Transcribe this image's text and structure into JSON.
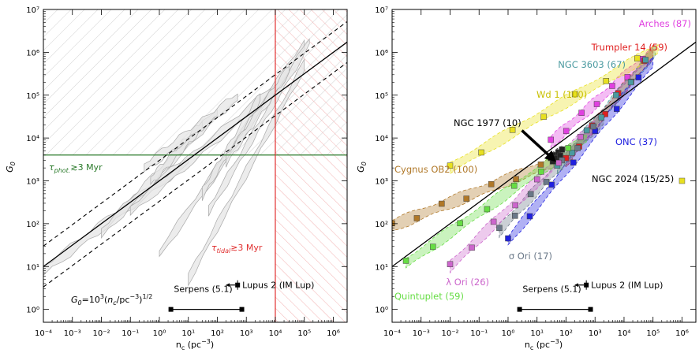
{
  "chart_data": [
    {
      "type": "line",
      "panel": "left",
      "xlabel": "n_c (pc^-3)",
      "ylabel": "G_0",
      "x_scale": "log",
      "y_scale": "log",
      "xlim": [
        0.0001,
        3000000
      ],
      "ylim": [
        0.5,
        10000000
      ],
      "x_ticks": [
        "10^-4",
        "10^-3",
        "10^-2",
        "10^-1",
        "10^0",
        "10^1",
        "10^2",
        "10^3",
        "10^4",
        "10^5",
        "10^6"
      ],
      "y_ticks": [
        "10^0",
        "10^1",
        "10^2",
        "10^3",
        "10^4",
        "10^5",
        "10^6",
        "10^7"
      ],
      "relation": {
        "text": "G_0 = 10^3 (n_c/pc^-3)^1/2",
        "coefficient": 1000,
        "exponent": 0.5
      },
      "dashed_factors": [
        3,
        0.3333
      ],
      "photoevaporation_limit": {
        "label": "τ_phot. ≳3 Myr",
        "G0": 4000,
        "color": "#2a7a2a"
      },
      "tidal_limit": {
        "label": "τ_tidal ≳3 Myr",
        "nc": 10000,
        "color": "#e03030"
      },
      "lupus": {
        "label": "Lupus 2 (IM Lup)",
        "nc": 500,
        "G0": 3.7
      },
      "serpens": {
        "label": "Serpens (5.1)",
        "nc_range": [
          2.5,
          700
        ],
        "G0": 1
      },
      "tracks": [
        {
          "n_start": 0.0001,
          "n_end": 10,
          "G0_start": 8,
          "G0_end": 3000
        },
        {
          "n_start": 0.01,
          "n_end": 100,
          "G0_start": 60,
          "G0_end": 40000
        },
        {
          "n_start": 0.1,
          "n_end": 10000,
          "G0_start": 200,
          "G0_end": 150000
        },
        {
          "n_start": 1,
          "n_end": 100000,
          "G0_start": 20,
          "G0_end": 1500000
        },
        {
          "n_start": 0.5,
          "n_end": 30,
          "G0_start": 1000,
          "G0_end": 20000
        },
        {
          "n_start": 0.3,
          "n_end": 500,
          "G0_start": 2000,
          "G0_end": 90000
        },
        {
          "n_start": 10,
          "n_end": 100000,
          "G0_start": 5,
          "G0_end": 500000
        },
        {
          "n_start": 50,
          "n_end": 150000,
          "G0_start": 200,
          "G0_end": 1800000
        },
        {
          "n_start": 30,
          "n_end": 3000,
          "G0_start": 500,
          "G0_end": 90000
        },
        {
          "n_start": 200,
          "n_end": 30000,
          "G0_start": 3000,
          "G0_end": 400000
        }
      ]
    },
    {
      "type": "scatter",
      "panel": "right",
      "xlabel": "n_c (pc^-3)",
      "ylabel": "G_0",
      "x_scale": "log",
      "y_scale": "log",
      "xlim": [
        0.0001,
        3000000
      ],
      "ylim": [
        0.5,
        10000000
      ],
      "relation": {
        "coefficient": 1000,
        "exponent": 0.5
      },
      "lupus": {
        "label": "Lupus 2 (IM Lup)",
        "nc": 500,
        "G0": 3.7
      },
      "serpens": {
        "label": "Serpens (5.1)",
        "nc_range": [
          2.5,
          700
        ],
        "G0": 1
      },
      "arrow": {
        "from": [
          3,
          15000
        ],
        "to": [
          40,
          3000
        ]
      },
      "series": [
        {
          "name": "Arches (87)",
          "color": "#e040e0",
          "marker": "square",
          "n_start": 30,
          "n_end": 100000,
          "G0_start": 8000,
          "G0_end": 1000000
        },
        {
          "name": "Trumpler 14 (59)",
          "color": "#e02020",
          "marker": "square",
          "n_start": 100,
          "n_end": 100000,
          "G0_start": 3000,
          "G0_end": 1000000
        },
        {
          "name": "NGC 3603 (67)",
          "color": "#4a9aa0",
          "marker": "square",
          "n_start": 50,
          "n_end": 120000,
          "G0_start": 2000,
          "G0_end": 1100000
        },
        {
          "name": "Wd 1 (100)",
          "color": "#e8e020",
          "marker": "square",
          "n_start": 0.01,
          "n_end": 150000,
          "G0_start": 2000,
          "G0_end": 1200000
        },
        {
          "name": "NGC 1977 (10)",
          "color": "#222222",
          "marker": "square",
          "n_start": 30,
          "n_end": 80,
          "G0_start": 3000,
          "G0_end": 5000
        },
        {
          "name": "ONC (37)",
          "color": "#2020e0",
          "marker": "square",
          "n_start": 1,
          "n_end": 100000,
          "G0_start": 40,
          "G0_end": 600000
        },
        {
          "name": "Cygnus OB2 (100)",
          "color": "#b07828",
          "marker": "square",
          "n_start": 0.0001,
          "n_end": 50,
          "G0_start": 90,
          "G0_end": 3000
        },
        {
          "name": "NGC 2024 (15/25)",
          "color": "#e8e020",
          "marker": "square",
          "n_start": 1000000,
          "n_end": 1000000,
          "G0_start": 1000,
          "G0_end": 1000
        },
        {
          "name": "σ Ori (17)",
          "color": "#6a7888",
          "marker": "square",
          "n_start": 0.5,
          "n_end": 2000,
          "G0_start": 70,
          "G0_end": 30000
        },
        {
          "name": "λ Ori (26)",
          "color": "#cc66cc",
          "marker": "square",
          "n_start": 0.01,
          "n_end": 1000,
          "G0_start": 10,
          "G0_end": 20000
        },
        {
          "name": "Quintuplet (59)",
          "color": "#66dd44",
          "marker": "square",
          "n_start": 0.0003,
          "n_end": 500,
          "G0_start": 12,
          "G0_end": 10000
        }
      ]
    }
  ],
  "labels": {
    "x_left": "n_c (pc^-3)",
    "x_right": "n_c (pc^-3)",
    "y_left": "G_0",
    "y_right": "G_0",
    "phot": "τ_phot. ≳3 Myr",
    "tidal": "τ_tidal ≳3 Myr",
    "relation": "G_0 = 10^3 (n_c/pc^-3)^1/2",
    "lupus": "Lupus 2 (IM Lup)",
    "serpens": "Serpens (5.1)"
  }
}
